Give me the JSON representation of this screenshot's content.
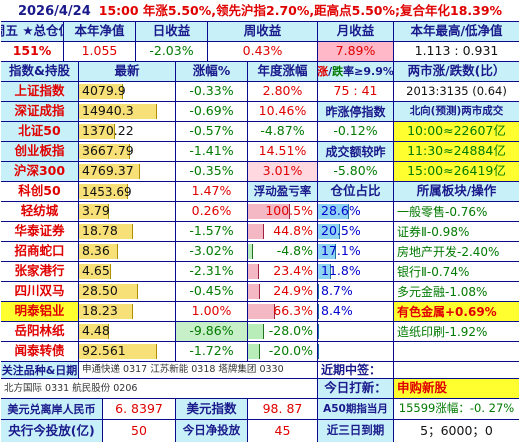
{
  "title": {
    "date": "2026/4/24",
    "summary": "15:00 年涨5.50%,领先沪指2.70%,距高点5.50%;复合年化18.39%"
  },
  "summary_header": [
    "周五 ★总仓位",
    "本年净值",
    "日收益",
    "周收益",
    "月收益",
    "本年最高/低净值"
  ],
  "summary_values": {
    "position": "151%",
    "nav": "1.055",
    "day": "-2.03%",
    "week": "0.43%",
    "month": "7.89%",
    "high_low": "1.113 : 0.931"
  },
  "index_header": {
    "name": "指数&持股",
    "latest": "最新",
    "change": "涨幅%",
    "year": "年度涨幅",
    "updown_red": "涨",
    "updown_sep": "/",
    "updown_green": "跌",
    "updown_rest": "率≥9.9%",
    "ratio": "两市涨/跌数(比）"
  },
  "indices": [
    {
      "name": "上证指数",
      "price": "4079.9",
      "change": "-0.33%",
      "year": "2.80%",
      "c4": "75 : 41",
      "c5": "2013:3135 (0.64)"
    },
    {
      "name": "深证成指",
      "price": "14940.3",
      "change": "-0.69%",
      "year": "10.46%",
      "c4": "昨涨停指数",
      "c5": "北向(预测)两市成交"
    },
    {
      "name": "北证50",
      "price": "1370.22",
      "change": "-0.57%",
      "year": "-4.87%",
      "c4": "-0.12%",
      "c5": "10:00≈22607亿"
    },
    {
      "name": "创业板指",
      "price": "3667.79",
      "change": "-1.41%",
      "year": "14.51%",
      "c4": "成交额较昨",
      "c5": "11:30≈24884亿"
    },
    {
      "name": "沪深300",
      "price": "4769.37",
      "change": "-0.35%",
      "year": "3.01%",
      "c4": "-5.80%",
      "c5": "15:00≈26419亿"
    }
  ],
  "kechuang": {
    "name": "科创50",
    "price": "1453.69",
    "change": "1.47%",
    "h_pl": "浮动盈亏率",
    "h_share": "仓位占比",
    "h_sector": "所属板块/操作"
  },
  "holdings": [
    {
      "name": "轻纺城",
      "price": "3.79",
      "change": "0.26%",
      "pl": "100.5%",
      "share": "28.6%",
      "sector": "一般零售-0.76%"
    },
    {
      "name": "华泰证券",
      "price": "18.78",
      "change": "-1.57%",
      "pl": "44.8%",
      "share": "20.5%",
      "sector": "证券Ⅱ-0.98%"
    },
    {
      "name": "招商蛇口",
      "price": "8.36",
      "change": "-3.02%",
      "pl": "-4.8%",
      "share": "17.1%",
      "sector": "房地产开发-2.40%"
    },
    {
      "name": "张家港行",
      "price": "4.65",
      "change": "-2.31%",
      "pl": "23.4%",
      "share": "11.8%",
      "sector": "银行Ⅱ-0.74%"
    },
    {
      "name": "四川双马",
      "price": "28.50",
      "change": "-0.45%",
      "pl": "24.9%",
      "share": "8.7%",
      "sector": "多元金融-1.08%"
    },
    {
      "name": "明泰铝业",
      "price": "18.23",
      "change": "1.00%",
      "pl": "66.3%",
      "share": "8.4%",
      "sector": "有色金属+0.69%"
    },
    {
      "name": "岳阳林纸",
      "price": "4.48",
      "change": "-9.86%",
      "pl": "-28.0%",
      "share": "",
      "sector": "造纸印刷-1.92%"
    },
    {
      "name": "闻泰转债",
      "price": "92.561",
      "change": "-1.72%",
      "pl": "-20.0%",
      "share": "",
      "sector": ""
    }
  ],
  "watch": {
    "label": "关注品种&日期",
    "items1": "申通快递 0317 江苏新能 0318 塔牌集团 0330",
    "items2": "北方国际 0331 航民股份 0206",
    "near_sign": "近期中签：",
    "today": "今日打新：",
    "today_val": "申购新股"
  },
  "footer": {
    "r1": [
      "美元兑离岸人民币",
      "6. 8397",
      "美元指数",
      "98. 87",
      "A50期指当月",
      "15599涨幅：-0. 27%"
    ],
    "r2": [
      "央行今投放(亿)",
      "50",
      "今日净投放",
      "45",
      "近三日到期",
      "5；6000；0"
    ]
  },
  "colors": {
    "header_bg": "#c8f0f8",
    "border": "#0a0a8c",
    "up": "#e00000",
    "down": "#007a00",
    "highlight": "#ffff30"
  }
}
